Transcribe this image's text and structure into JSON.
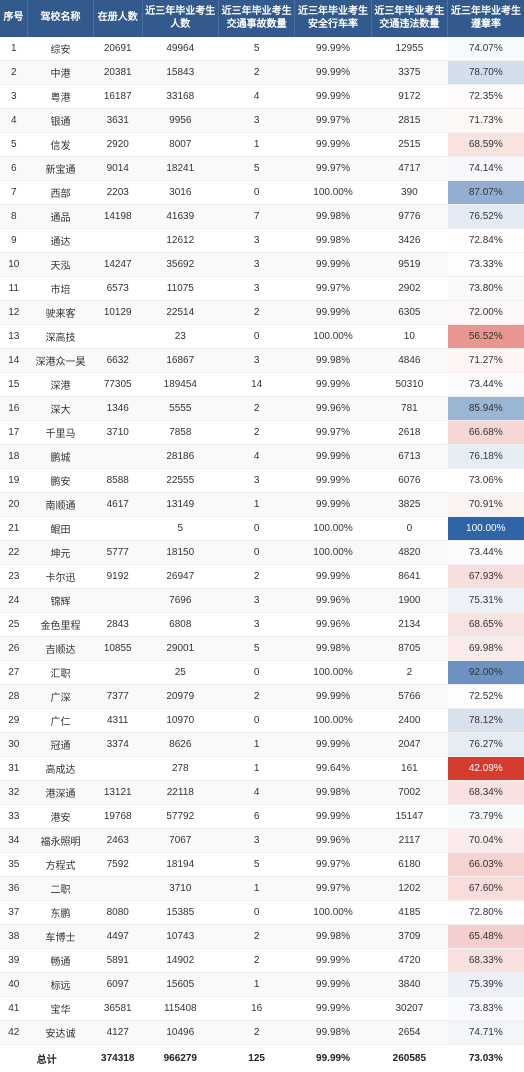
{
  "columns": [
    {
      "key": "seq",
      "label": "序号",
      "class": "col-seq"
    },
    {
      "key": "name",
      "label": "驾校名称",
      "class": "col-name"
    },
    {
      "key": "code",
      "label": "在册人数",
      "class": "col-code"
    },
    {
      "key": "credit",
      "label": "近三年毕业考生人数",
      "class": "col-cred"
    },
    {
      "key": "acc",
      "label": "近三年毕业考生交通事故数量",
      "class": "col-acc"
    },
    {
      "key": "safe",
      "label": "近三年毕业考生安全行车率",
      "class": "col-safe"
    },
    {
      "key": "vio",
      "label": "近三年毕业考生交通违法数量",
      "class": "col-vio"
    },
    {
      "key": "obey",
      "label": "近三年毕业考生遵章率",
      "class": "col-obey"
    }
  ],
  "color_scale": {
    "low": "#d63a2f",
    "mid": "#ffffff",
    "high": "#2f64a8",
    "domain_min": 42.0,
    "domain_max": 100.0
  },
  "rows": [
    {
      "seq": 1,
      "name": "综安",
      "code": "20691",
      "credit": "49964",
      "acc": "5",
      "safe": "99.99%",
      "vio": "12955",
      "obey": "74.07%",
      "obey_val": 74.07
    },
    {
      "seq": 2,
      "name": "中港",
      "code": "20381",
      "credit": "15843",
      "acc": "2",
      "safe": "99.99%",
      "vio": "3375",
      "obey": "78.70%",
      "obey_val": 78.7
    },
    {
      "seq": 3,
      "name": "粤港",
      "code": "16187",
      "credit": "33168",
      "acc": "4",
      "safe": "99.99%",
      "vio": "9172",
      "obey": "72.35%",
      "obey_val": 72.35
    },
    {
      "seq": 4,
      "name": "银通",
      "code": "3631",
      "credit": "9956",
      "acc": "3",
      "safe": "99.97%",
      "vio": "2815",
      "obey": "71.73%",
      "obey_val": 71.73
    },
    {
      "seq": 5,
      "name": "信发",
      "code": "2920",
      "credit": "8007",
      "acc": "1",
      "safe": "99.99%",
      "vio": "2515",
      "obey": "68.59%",
      "obey_val": 68.59
    },
    {
      "seq": 6,
      "name": "新宝通",
      "code": "9014",
      "credit": "18241",
      "acc": "5",
      "safe": "99.97%",
      "vio": "4717",
      "obey": "74.14%",
      "obey_val": 74.14
    },
    {
      "seq": 7,
      "name": "西部",
      "code": "2203",
      "credit": "3016",
      "acc": "0",
      "safe": "100.00%",
      "vio": "390",
      "obey": "87.07%",
      "obey_val": 87.07
    },
    {
      "seq": 8,
      "name": "通品",
      "code": "14198",
      "credit": "41639",
      "acc": "7",
      "safe": "99.98%",
      "vio": "9776",
      "obey": "76.52%",
      "obey_val": 76.52
    },
    {
      "seq": 9,
      "name": "通达",
      "code": "",
      "credit": "12612",
      "acc": "3",
      "safe": "99.98%",
      "vio": "3426",
      "obey": "72.84%",
      "obey_val": 72.84
    },
    {
      "seq": 10,
      "name": "天泓",
      "code": "14247",
      "credit": "35692",
      "acc": "3",
      "safe": "99.99%",
      "vio": "9519",
      "obey": "73.33%",
      "obey_val": 73.33
    },
    {
      "seq": 11,
      "name": "市培",
      "code": "6573",
      "credit": "11075",
      "acc": "3",
      "safe": "99.97%",
      "vio": "2902",
      "obey": "73.80%",
      "obey_val": 73.8
    },
    {
      "seq": 12,
      "name": "驶来客",
      "code": "10129",
      "credit": "22514",
      "acc": "2",
      "safe": "99.99%",
      "vio": "6305",
      "obey": "72.00%",
      "obey_val": 72.0
    },
    {
      "seq": 13,
      "name": "深高技",
      "code": "",
      "credit": "23",
      "acc": "0",
      "safe": "100.00%",
      "vio": "10",
      "obey": "56.52%",
      "obey_val": 56.52
    },
    {
      "seq": 14,
      "name": "深港众一昊",
      "code": "6632",
      "credit": "16867",
      "acc": "3",
      "safe": "99.98%",
      "vio": "4846",
      "obey": "71.27%",
      "obey_val": 71.27
    },
    {
      "seq": 15,
      "name": "深港",
      "code": "77305",
      "credit": "189454",
      "acc": "14",
      "safe": "99.99%",
      "vio": "50310",
      "obey": "73.44%",
      "obey_val": 73.44
    },
    {
      "seq": 16,
      "name": "深大",
      "code": "1346",
      "credit": "5555",
      "acc": "2",
      "safe": "99.96%",
      "vio": "781",
      "obey": "85.94%",
      "obey_val": 85.94
    },
    {
      "seq": 17,
      "name": "千里马",
      "code": "3710",
      "credit": "7858",
      "acc": "2",
      "safe": "99.97%",
      "vio": "2618",
      "obey": "66.68%",
      "obey_val": 66.68
    },
    {
      "seq": 18,
      "name": "鹏城",
      "code": "",
      "credit": "28186",
      "acc": "4",
      "safe": "99.99%",
      "vio": "6713",
      "obey": "76.18%",
      "obey_val": 76.18
    },
    {
      "seq": 19,
      "name": "鹏安",
      "code": "8588",
      "credit": "22555",
      "acc": "3",
      "safe": "99.99%",
      "vio": "6076",
      "obey": "73.06%",
      "obey_val": 73.06
    },
    {
      "seq": 20,
      "name": "南顺通",
      "code": "4617",
      "credit": "13149",
      "acc": "1",
      "safe": "99.99%",
      "vio": "3825",
      "obey": "70.91%",
      "obey_val": 70.91
    },
    {
      "seq": 21,
      "name": "鲲田",
      "code": "",
      "credit": "5",
      "acc": "0",
      "safe": "100.00%",
      "vio": "0",
      "obey": "100.00%",
      "obey_val": 100.0
    },
    {
      "seq": 22,
      "name": "坤元",
      "code": "5777",
      "credit": "18150",
      "acc": "0",
      "safe": "100.00%",
      "vio": "4820",
      "obey": "73.44%",
      "obey_val": 73.44
    },
    {
      "seq": 23,
      "name": "卡尔迅",
      "code": "9192",
      "credit": "26947",
      "acc": "2",
      "safe": "99.99%",
      "vio": "8641",
      "obey": "67.93%",
      "obey_val": 67.93
    },
    {
      "seq": 24,
      "name": "锦辉",
      "code": "",
      "credit": "7696",
      "acc": "3",
      "safe": "99.96%",
      "vio": "1900",
      "obey": "75.31%",
      "obey_val": 75.31
    },
    {
      "seq": 25,
      "name": "金色里程",
      "code": "2843",
      "credit": "6808",
      "acc": "3",
      "safe": "99.96%",
      "vio": "2134",
      "obey": "68.65%",
      "obey_val": 68.65
    },
    {
      "seq": 26,
      "name": "吉顺达",
      "code": "10855",
      "credit": "29001",
      "acc": "5",
      "safe": "99.98%",
      "vio": "8705",
      "obey": "69.98%",
      "obey_val": 69.98
    },
    {
      "seq": 27,
      "name": "汇职",
      "code": "",
      "credit": "25",
      "acc": "0",
      "safe": "100.00%",
      "vio": "2",
      "obey": "92.00%",
      "obey_val": 92.0
    },
    {
      "seq": 28,
      "name": "广深",
      "code": "7377",
      "credit": "20979",
      "acc": "2",
      "safe": "99.99%",
      "vio": "5766",
      "obey": "72.52%",
      "obey_val": 72.52
    },
    {
      "seq": 29,
      "name": "广仁",
      "code": "4311",
      "credit": "10970",
      "acc": "0",
      "safe": "100.00%",
      "vio": "2400",
      "obey": "78.12%",
      "obey_val": 78.12
    },
    {
      "seq": 30,
      "name": "冠通",
      "code": "3374",
      "credit": "8626",
      "acc": "1",
      "safe": "99.99%",
      "vio": "2047",
      "obey": "76.27%",
      "obey_val": 76.27
    },
    {
      "seq": 31,
      "name": "高成达",
      "code": "",
      "credit": "278",
      "acc": "1",
      "safe": "99.64%",
      "vio": "161",
      "obey": "42.09%",
      "obey_val": 42.09
    },
    {
      "seq": 32,
      "name": "港深通",
      "code": "13121",
      "credit": "22118",
      "acc": "4",
      "safe": "99.98%",
      "vio": "7002",
      "obey": "68.34%",
      "obey_val": 68.34
    },
    {
      "seq": 33,
      "name": "港安",
      "code": "19768",
      "credit": "57792",
      "acc": "6",
      "safe": "99.99%",
      "vio": "15147",
      "obey": "73.79%",
      "obey_val": 73.79
    },
    {
      "seq": 34,
      "name": "福永照明",
      "code": "2463",
      "credit": "7067",
      "acc": "3",
      "safe": "99.96%",
      "vio": "2117",
      "obey": "70.04%",
      "obey_val": 70.04
    },
    {
      "seq": 35,
      "name": "方程式",
      "code": "7592",
      "credit": "18194",
      "acc": "5",
      "safe": "99.97%",
      "vio": "6180",
      "obey": "66.03%",
      "obey_val": 66.03
    },
    {
      "seq": 36,
      "name": "二职",
      "code": "",
      "credit": "3710",
      "acc": "1",
      "safe": "99.97%",
      "vio": "1202",
      "obey": "67.60%",
      "obey_val": 67.6
    },
    {
      "seq": 37,
      "name": "东鹏",
      "code": "8080",
      "credit": "15385",
      "acc": "0",
      "safe": "100.00%",
      "vio": "4185",
      "obey": "72.80%",
      "obey_val": 72.8
    },
    {
      "seq": 38,
      "name": "车博士",
      "code": "4497",
      "credit": "10743",
      "acc": "2",
      "safe": "99.98%",
      "vio": "3709",
      "obey": "65.48%",
      "obey_val": 65.48
    },
    {
      "seq": 39,
      "name": "畅通",
      "code": "5891",
      "credit": "14902",
      "acc": "2",
      "safe": "99.99%",
      "vio": "4720",
      "obey": "68.33%",
      "obey_val": 68.33
    },
    {
      "seq": 40,
      "name": "标远",
      "code": "6097",
      "credit": "15605",
      "acc": "1",
      "safe": "99.99%",
      "vio": "3840",
      "obey": "75.39%",
      "obey_val": 75.39
    },
    {
      "seq": 41,
      "name": "宝华",
      "code": "36581",
      "credit": "115408",
      "acc": "16",
      "safe": "99.99%",
      "vio": "30207",
      "obey": "73.83%",
      "obey_val": 73.83
    },
    {
      "seq": 42,
      "name": "安达诚",
      "code": "4127",
      "credit": "10496",
      "acc": "2",
      "safe": "99.98%",
      "vio": "2654",
      "obey": "74.71%",
      "obey_val": 74.71
    }
  ],
  "totals": {
    "label": "总计",
    "code": "374318",
    "credit": "966279",
    "acc": "125",
    "safe": "99.99%",
    "vio": "260585",
    "obey": "73.03%"
  }
}
